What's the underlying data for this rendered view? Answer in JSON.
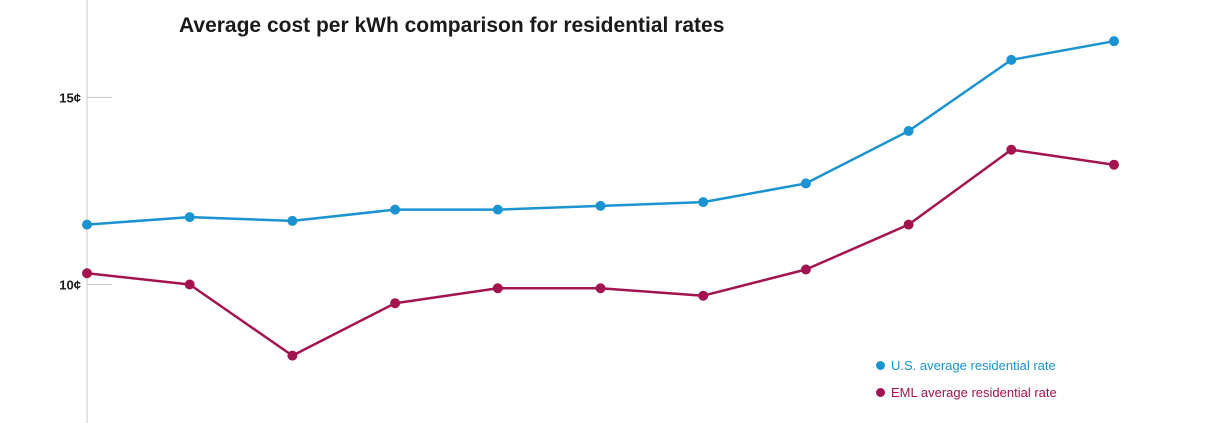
{
  "chart_data": {
    "type": "line",
    "title": "Average cost per kWh comparison for residential rates",
    "xlabel": "",
    "ylabel": "",
    "y_ticks": [
      {
        "value": 10,
        "label": "10¢"
      },
      {
        "value": 15,
        "label": "15¢"
      }
    ],
    "ylim": [
      6.3,
      17.6
    ],
    "x": [
      1,
      2,
      3,
      4,
      5,
      6,
      7,
      8,
      9,
      10,
      11
    ],
    "series": [
      {
        "name": "U.S. average residential rate",
        "color": "#1a93d0",
        "values": [
          11.6,
          11.8,
          11.7,
          12.0,
          12.0,
          12.1,
          12.2,
          12.7,
          14.1,
          16.0,
          16.5
        ]
      },
      {
        "name": "EML average residential rate",
        "color": "#a3134f",
        "values": [
          10.3,
          10.0,
          8.1,
          9.5,
          9.9,
          9.9,
          9.7,
          10.4,
          11.6,
          13.6,
          13.2
        ]
      }
    ],
    "grid": false,
    "legend_position": "bottom-right"
  }
}
